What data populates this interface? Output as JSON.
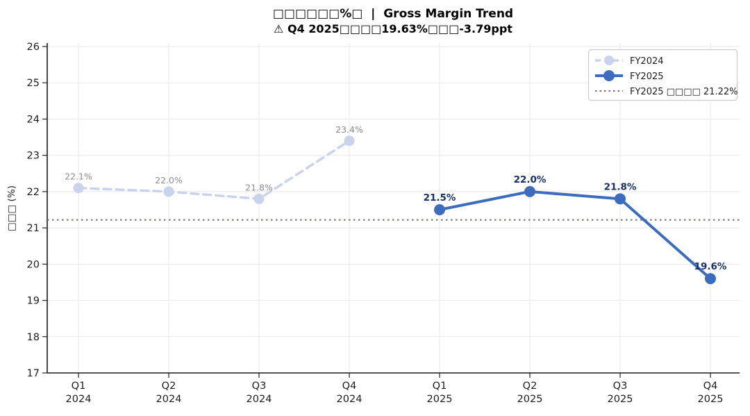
{
  "chart_data": {
    "type": "line",
    "title": "□□□□□□%□  |  Gross Margin Trend",
    "subtitle": "⚠ Q4 2025□□□□19.63%□□□-3.79ppt",
    "ylabel": "□□□ (%)",
    "ylim": [
      17,
      26
    ],
    "yticks": [
      17,
      18,
      19,
      20,
      21,
      22,
      23,
      24,
      25,
      26
    ],
    "grid": true,
    "categories": [
      {
        "line1": "Q1",
        "line2": "2024"
      },
      {
        "line1": "Q2",
        "line2": "2024"
      },
      {
        "line1": "Q3",
        "line2": "2024"
      },
      {
        "line1": "Q4",
        "line2": "2024"
      },
      {
        "line1": "Q1",
        "line2": "2025"
      },
      {
        "line1": "Q2",
        "line2": "2025"
      },
      {
        "line1": "Q3",
        "line2": "2025"
      },
      {
        "line1": "Q4",
        "line2": "2025"
      }
    ],
    "series": [
      {
        "name": "FY2024",
        "x_start_index": 0,
        "values": [
          22.1,
          22.0,
          21.8,
          23.4
        ],
        "point_labels": [
          "22.1%",
          "22.0%",
          "21.8%",
          "23.4%"
        ],
        "color": "#c9d3ec",
        "label_color": "#8c8c8c",
        "line_style": "dashed"
      },
      {
        "name": "FY2025",
        "x_start_index": 4,
        "values": [
          21.5,
          22.0,
          21.8,
          19.6
        ],
        "point_labels": [
          "21.5%",
          "22.0%",
          "21.8%",
          "19.6%"
        ],
        "color": "#3c6cbe",
        "label_color": "#17306b",
        "line_style": "solid"
      }
    ],
    "reference_line": {
      "value": 21.22,
      "label": "FY2025 □□□□ 21.22%",
      "color": "#73736b",
      "line_style": "dotted"
    },
    "legend": {
      "position": "top-right",
      "entries": [
        {
          "label": "FY2024"
        },
        {
          "label": "FY2025"
        },
        {
          "label": "FY2025 □□□□ 21.22%"
        }
      ]
    }
  }
}
